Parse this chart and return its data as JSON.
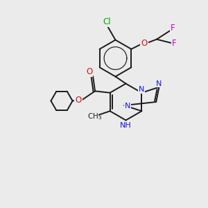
{
  "bg_color": "#ebebeb",
  "bond_color": "#1a1a1a",
  "bond_width": 1.4,
  "atom_colors": {
    "N": "#1414e6",
    "O": "#cc1414",
    "Cl": "#00aa00",
    "F": "#cc00cc",
    "H_light": "#5555cc",
    "C": "#1a1a1a"
  },
  "font_size": 8.5,
  "small_font_size": 8.0,
  "scale": 1.0
}
